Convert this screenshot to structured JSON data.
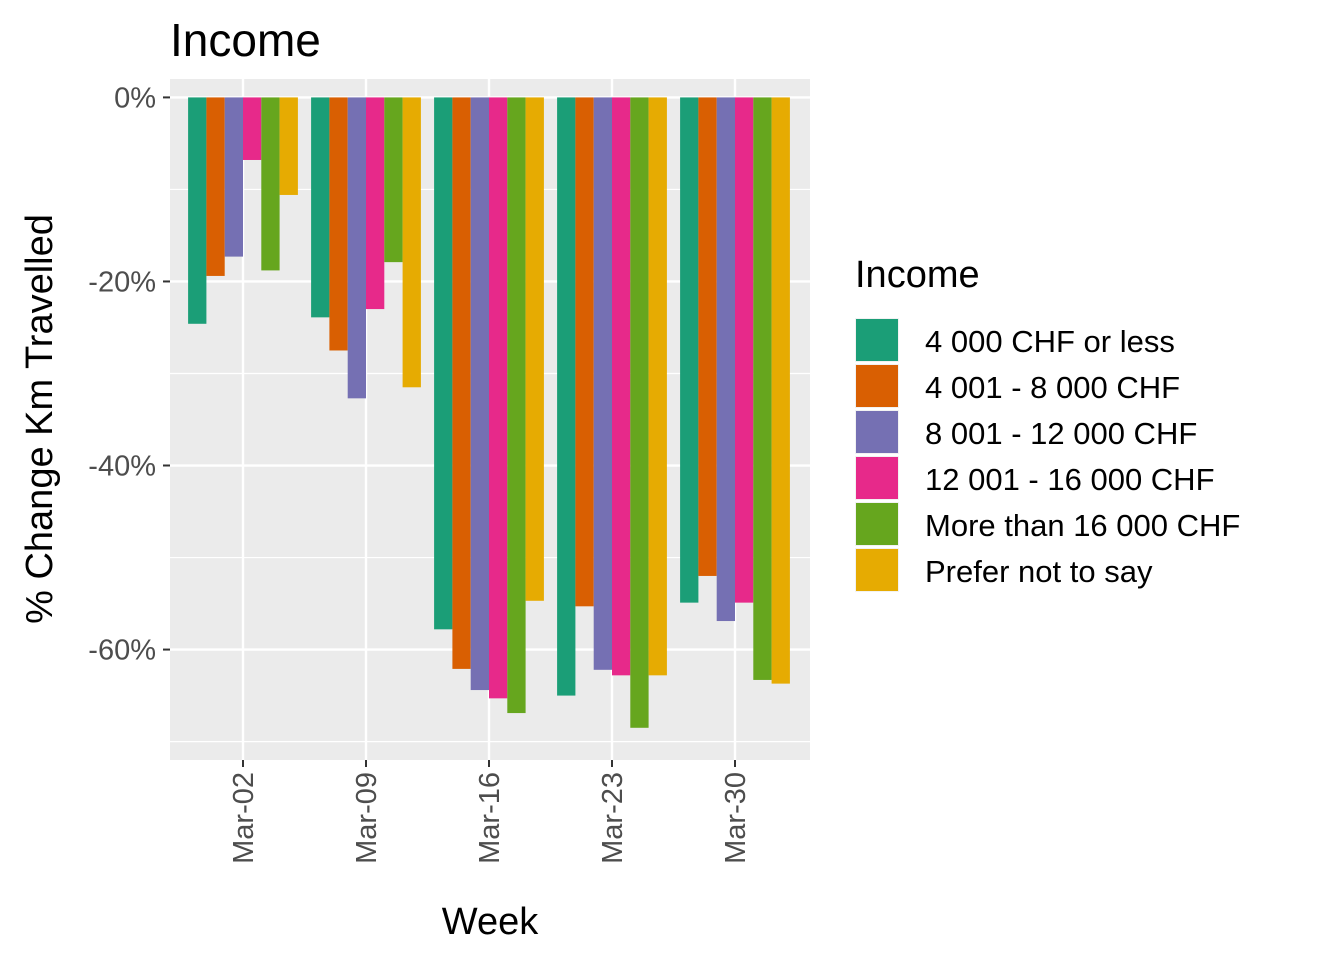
{
  "chart_data": {
    "type": "bar",
    "title": "Income",
    "xlabel": "Week",
    "ylabel": "% Change Km Travelled",
    "categories": [
      "Mar-02",
      "Mar-09",
      "Mar-16",
      "Mar-23",
      "Mar-30"
    ],
    "ylim": [
      -72,
      2
    ],
    "yticks": [
      0,
      -20,
      -40,
      -60
    ],
    "ytick_labels": [
      "0%",
      "-20%",
      "-40%",
      "-60%"
    ],
    "grid": true,
    "legend": {
      "title": "Income",
      "position": "right"
    },
    "series": [
      {
        "name": "4 000 CHF or less",
        "color": "#1b9e77",
        "values": [
          -24.6,
          -23.9,
          -57.8,
          -65.0,
          -54.9
        ]
      },
      {
        "name": "4 001 - 8 000 CHF",
        "color": "#d95f02",
        "values": [
          -19.4,
          -27.5,
          -62.1,
          -55.3,
          -52.0
        ]
      },
      {
        "name": "8 001 - 12 000 CHF",
        "color": "#7570b3",
        "values": [
          -17.3,
          -32.7,
          -64.4,
          -62.2,
          -56.9
        ]
      },
      {
        "name": "12 001 - 16 000 CHF",
        "color": "#e7298a",
        "values": [
          -6.8,
          -23.0,
          -65.3,
          -62.8,
          -54.9
        ]
      },
      {
        "name": "More than 16 000 CHF",
        "color": "#66a61e",
        "values": [
          -18.8,
          -17.9,
          -66.9,
          -68.5,
          -63.3
        ]
      },
      {
        "name": "Prefer not to say",
        "color": "#e6ab02",
        "values": [
          -10.6,
          -31.5,
          -54.7,
          -62.8,
          -63.7
        ]
      }
    ]
  }
}
